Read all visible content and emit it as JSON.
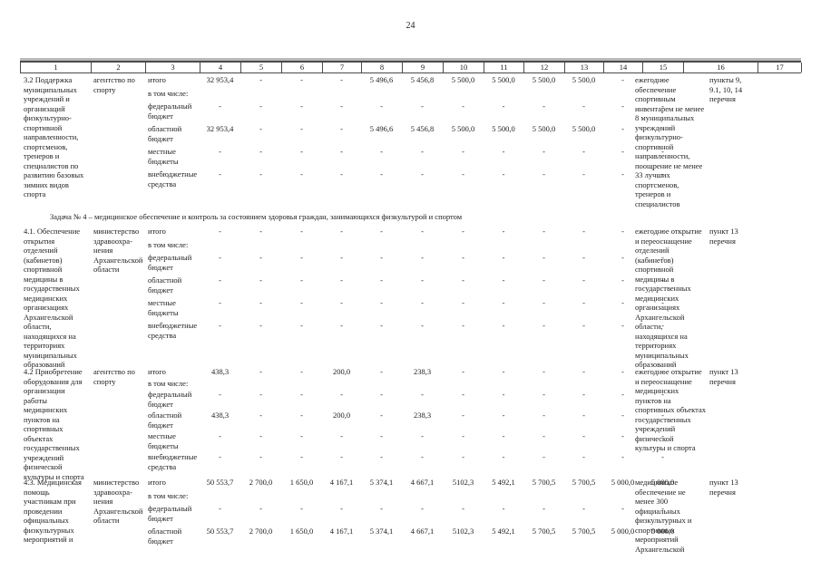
{
  "page_number": "24",
  "section_header": "Задача № 4 – медицинское обеспечение и контроль за состоянием здоровья граждан, занимающихся физкультурой и спортом",
  "table": {
    "header_columns": [
      "1",
      "2",
      "3",
      "4",
      "5",
      "6",
      "7",
      "8",
      "9",
      "10",
      "11",
      "12",
      "13",
      "14",
      "15",
      "16",
      "17"
    ],
    "rows": [
      {
        "activity": "3.2 Поддержка муниципальных учреждений и организаций физкультурно-спортивной направленности, спортсменов, тренеров и специалистов по развитию базовых зимних видов спорта",
        "executor": "агентство по спорту",
        "budget_lines": [
          {
            "label": "итого",
            "values": [
              "32 953,4",
              "-",
              "-",
              "-",
              "5 496,6",
              "5 456,8",
              "5 500,0",
              "5 500,0",
              "5 500,0",
              "5 500,0",
              "-",
              "-"
            ]
          },
          {
            "label": "в том числе:",
            "values": []
          },
          {
            "label": "федеральный бюджет",
            "values": [
              "-",
              "-",
              "-",
              "-",
              "-",
              "-",
              "-",
              "-",
              "-",
              "-",
              "-",
              "-"
            ]
          },
          {
            "label": "областной бюджет",
            "values": [
              "32 953,4",
              "-",
              "-",
              "-",
              "5 496,6",
              "5 456,8",
              "5 500,0",
              "5 500,0",
              "5 500,0",
              "5 500,0",
              "-",
              "-"
            ]
          },
          {
            "label": "местные бюджеты",
            "values": [
              "-",
              "-",
              "-",
              "-",
              "-",
              "-",
              "-",
              "-",
              "-",
              "-",
              "-",
              "-"
            ]
          },
          {
            "label": "внебюджетные средства",
            "values": [
              "-",
              "-",
              "-",
              "-",
              "-",
              "-",
              "-",
              "-",
              "-",
              "-",
              "-",
              "-"
            ]
          }
        ],
        "expected_result": "ежегодное обеспечение спортивным инвентарем не менее 8 муниципальных учреждений физкультурно-спортивной направленности, поощрение не менее 33 лучших спортсменов, тренеров и специалистов",
        "reference": "пункты 9, 9.1, 10, 14 перечня"
      },
      {
        "activity": "4.1. Обеспечение открытия отделений (кабинетов) спортивной медицины в государственных медицинских организациях Архангельской области, находящихся на территориях муниципальных образований",
        "executor": "министерство здравоохра-нения Архангельской области",
        "budget_lines": [
          {
            "label": "итого",
            "values": [
              "-",
              "-",
              "-",
              "-",
              "-",
              "-",
              "-",
              "-",
              "-",
              "-",
              "-",
              "-"
            ]
          },
          {
            "label": "в том числе:",
            "values": []
          },
          {
            "label": "федеральный бюджет",
            "values": [
              "-",
              "-",
              "-",
              "-",
              "-",
              "-",
              "-",
              "-",
              "-",
              "-",
              "-",
              "-"
            ]
          },
          {
            "label": "областной бюджет",
            "values": [
              "-",
              "-",
              "-",
              "-",
              "-",
              "-",
              "-",
              "-",
              "-",
              "-",
              "-",
              "-"
            ]
          },
          {
            "label": "местные бюджеты",
            "values": [
              "-",
              "-",
              "-",
              "-",
              "-",
              "-",
              "-",
              "-",
              "-",
              "-",
              "-",
              "-"
            ]
          },
          {
            "label": "внебюджетные средства",
            "values": [
              "-",
              "-",
              "-",
              "-",
              "-",
              "-",
              "-",
              "-",
              "-",
              "-",
              "-",
              "-"
            ]
          }
        ],
        "expected_result": "ежегодное открытие и переоснащение отделений (кабинетов) спортивной медицины в государственных медицинских организациях Архангельской области, находящихся на территориях муниципальных образований",
        "reference": "пункт 13 перечня"
      },
      {
        "activity": "4.2 Приобретение оборудования для организации работы медицинских пунктов на спортивных объектах государственных учреждений физической культуры и спорта",
        "executor": "агентство по спорту",
        "budget_lines": [
          {
            "label": "итого",
            "values": [
              "438,3",
              "-",
              "-",
              "200,0",
              "-",
              "238,3",
              "-",
              "-",
              "-",
              "-",
              "-",
              "-"
            ]
          },
          {
            "label": "в том числе:",
            "values": []
          },
          {
            "label": "федеральный бюджет",
            "values": [
              "-",
              "-",
              "-",
              "-",
              "-",
              "-",
              "-",
              "-",
              "-",
              "-",
              "-",
              "-"
            ]
          },
          {
            "label": "областной бюджет",
            "values": [
              "438,3",
              "-",
              "-",
              "200,0",
              "-",
              "238,3",
              "-",
              "-",
              "-",
              "-",
              "-",
              "-"
            ]
          },
          {
            "label": "местные бюджеты",
            "values": [
              "-",
              "-",
              "-",
              "-",
              "-",
              "-",
              "-",
              "-",
              "-",
              "-",
              "-",
              "-"
            ]
          },
          {
            "label": "внебюджетные средства",
            "values": [
              "-",
              "-",
              "-",
              "-",
              "-",
              "-",
              "-",
              "-",
              "-",
              "-",
              "-",
              "-"
            ]
          }
        ],
        "expected_result": "ежегодное открытие и переоснащение медицинских пунктов на спортивных объектах государственных учреждений физической культуры и спорта",
        "reference": "пункт 13 перечня"
      },
      {
        "activity": "4.3. Медицинская помощь участникам при проведении официальных физкультурных мероприятий и",
        "executor": "министерство здравоохра-нения Архангельской области",
        "budget_lines": [
          {
            "label": "итого",
            "values": [
              "50 553,7",
              "2 700,0",
              "1 650,0",
              "4 167,1",
              "5 374,1",
              "4 667,1",
              "5102,3",
              "5 492,1",
              "5 700,5",
              "5 700,5",
              "5 000,0",
              "5 000,0"
            ]
          },
          {
            "label": "в том числе:",
            "values": []
          },
          {
            "label": "федеральный бюджет",
            "values": [
              "-",
              "-",
              "-",
              "-",
              "-",
              "-",
              "-",
              "-",
              "-",
              "-",
              "-",
              "-"
            ]
          },
          {
            "label": "областной бюджет",
            "values": [
              "50 553,7",
              "2 700,0",
              "1 650,0",
              "4 167,1",
              "5 374,1",
              "4 667,1",
              "5102,3",
              "5 492,1",
              "5 700,5",
              "5 700,5",
              "5 000,0",
              "5 000,0"
            ]
          }
        ],
        "expected_result": "медицинское обеспечение не менее 300 официальных физкультурных и спортивных мероприятий Архангельской",
        "reference": "пункт 13 перечня"
      }
    ]
  }
}
